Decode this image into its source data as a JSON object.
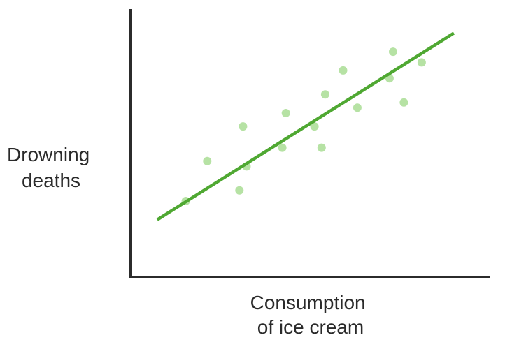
{
  "chart_data": {
    "type": "scatter",
    "title": "",
    "xlabel": [
      "Consumption",
      "of ice cream"
    ],
    "ylabel": [
      "Drowning",
      "deaths"
    ],
    "xlim": [
      0,
      100
    ],
    "ylim": [
      0,
      100
    ],
    "ticks": "none",
    "grid": false,
    "legend": "none",
    "colors": {
      "axis": "#2b2b2b",
      "points": "#b6e2a4",
      "trend_line": "#4fa832"
    },
    "points": [
      {
        "x": 15,
        "y": 28
      },
      {
        "x": 21,
        "y": 43
      },
      {
        "x": 30,
        "y": 32
      },
      {
        "x": 31,
        "y": 56
      },
      {
        "x": 32,
        "y": 41
      },
      {
        "x": 42,
        "y": 48
      },
      {
        "x": 43,
        "y": 61
      },
      {
        "x": 51,
        "y": 56
      },
      {
        "x": 53,
        "y": 48
      },
      {
        "x": 54,
        "y": 68
      },
      {
        "x": 59,
        "y": 77
      },
      {
        "x": 63,
        "y": 63
      },
      {
        "x": 72,
        "y": 74
      },
      {
        "x": 73,
        "y": 84
      },
      {
        "x": 76,
        "y": 65
      },
      {
        "x": 81,
        "y": 80
      }
    ],
    "trend_line": {
      "x": [
        7,
        90
      ],
      "y": [
        21,
        91
      ]
    }
  }
}
